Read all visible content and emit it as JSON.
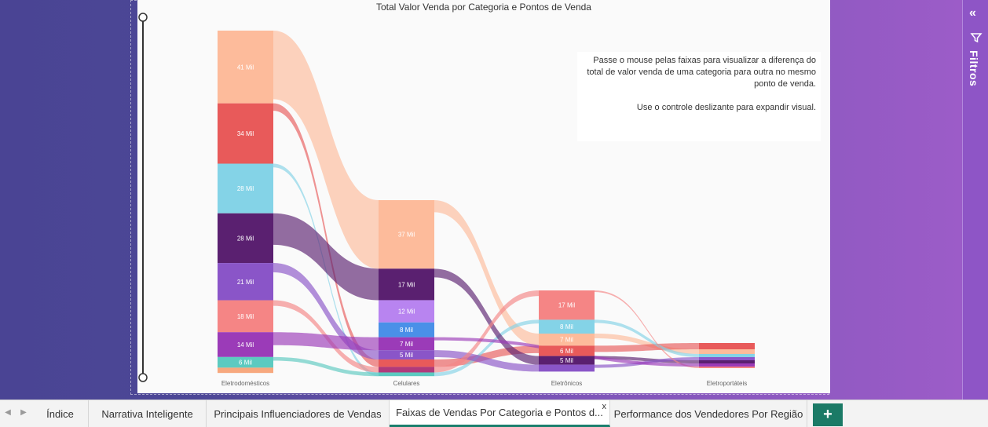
{
  "chart_data": {
    "type": "sankey",
    "title": "Total Valor Venda por Categoria e Pontos de Venda",
    "stages": [
      "Eletrodomésticos",
      "Celulares",
      "Eletrônicos",
      "Eletroportáteis"
    ],
    "nodes": [
      {
        "stage": "Eletrodomésticos",
        "color": "#fdbb9b",
        "value": 41,
        "label": "41 Mil"
      },
      {
        "stage": "Eletrodomésticos",
        "color": "#e85a5a",
        "value": 34,
        "label": "34 Mil"
      },
      {
        "stage": "Eletrodomésticos",
        "color": "#84d3e7",
        "value": 28,
        "label": "28 Mil"
      },
      {
        "stage": "Eletrodomésticos",
        "color": "#5a2070",
        "value": 28,
        "label": "28 Mil"
      },
      {
        "stage": "Eletrodomésticos",
        "color": "#8a55c8",
        "value": 21,
        "label": "21 Mil"
      },
      {
        "stage": "Eletrodomésticos",
        "color": "#f58585",
        "value": 18,
        "label": "18 Mil"
      },
      {
        "stage": "Eletrodomésticos",
        "color": "#9b3bb8",
        "value": 14,
        "label": "14 Mil"
      },
      {
        "stage": "Eletrodomésticos",
        "color": "#5ccac0",
        "value": 6,
        "label": "6 Mil"
      },
      {
        "stage": "Eletrodomésticos",
        "color": "#f7a87e",
        "value": 3,
        "label": ""
      },
      {
        "stage": "Celulares",
        "color": "#fdbb9b",
        "value": 37,
        "label": "37 Mil"
      },
      {
        "stage": "Celulares",
        "color": "#5a2070",
        "value": 17,
        "label": "17 Mil"
      },
      {
        "stage": "Celulares",
        "color": "#b884f0",
        "value": 12,
        "label": "12 Mil"
      },
      {
        "stage": "Celulares",
        "color": "#4a90e8",
        "value": 8,
        "label": "8 Mil"
      },
      {
        "stage": "Celulares",
        "color": "#9b3bb8",
        "value": 7,
        "label": "7 Mil"
      },
      {
        "stage": "Celulares",
        "color": "#8a55c8",
        "value": 5,
        "label": "5 Mil"
      },
      {
        "stage": "Celulares",
        "color": "#e85a5a",
        "value": 4,
        "label": ""
      },
      {
        "stage": "Celulares",
        "color": "#b03a7a",
        "value": 3,
        "label": ""
      },
      {
        "stage": "Celulares",
        "color": "#5ccac0",
        "value": 2,
        "label": ""
      },
      {
        "stage": "Eletrônicos",
        "color": "#f58585",
        "value": 17,
        "label": "17 Mil"
      },
      {
        "stage": "Eletrônicos",
        "color": "#84d3e7",
        "value": 8,
        "label": "8 Mil"
      },
      {
        "stage": "Eletrônicos",
        "color": "#fdbb9b",
        "value": 7,
        "label": "7 Mil"
      },
      {
        "stage": "Eletrônicos",
        "color": "#e85a5a",
        "value": 6,
        "label": "6 Mil"
      },
      {
        "stage": "Eletrônicos",
        "color": "#5a2070",
        "value": 5,
        "label": "5 Mil"
      },
      {
        "stage": "Eletrônicos",
        "color": "#8a55c8",
        "value": 4,
        "label": ""
      },
      {
        "stage": "Eletroportáteis",
        "color": "#e85a5a",
        "value": 4,
        "label": ""
      },
      {
        "stage": "Eletroportáteis",
        "color": "#fdbb9b",
        "value": 3,
        "label": ""
      },
      {
        "stage": "Eletroportáteis",
        "color": "#84d3e7",
        "value": 2,
        "label": ""
      },
      {
        "stage": "Eletroportáteis",
        "color": "#8a55c8",
        "value": 2,
        "label": ""
      },
      {
        "stage": "Eletroportáteis",
        "color": "#5a2070",
        "value": 2,
        "label": ""
      },
      {
        "stage": "Eletroportáteis",
        "color": "#9b3bb8",
        "value": 2,
        "label": ""
      },
      {
        "stage": "Eletroportáteis",
        "color": "#f58585",
        "value": 1,
        "label": ""
      }
    ],
    "flows": [
      {
        "color": "#fdbb9b",
        "from": 0,
        "to": 9
      },
      {
        "color": "#fdbb9b",
        "from": 9,
        "to": 20
      },
      {
        "color": "#fdbb9b",
        "from": 20,
        "to": 25
      },
      {
        "color": "#e85a5a",
        "from": 1,
        "to": 15
      },
      {
        "color": "#e85a5a",
        "from": 15,
        "to": 21
      },
      {
        "color": "#e85a5a",
        "from": 21,
        "to": 24
      },
      {
        "color": "#84d3e7",
        "from": 2,
        "to": 17
      },
      {
        "color": "#84d3e7",
        "from": 17,
        "to": 19
      },
      {
        "color": "#84d3e7",
        "from": 19,
        "to": 26
      },
      {
        "color": "#5a2070",
        "from": 3,
        "to": 10
      },
      {
        "color": "#5a2070",
        "from": 10,
        "to": 22
      },
      {
        "color": "#5a2070",
        "from": 22,
        "to": 28
      },
      {
        "color": "#8a55c8",
        "from": 4,
        "to": 14
      },
      {
        "color": "#8a55c8",
        "from": 14,
        "to": 23
      },
      {
        "color": "#8a55c8",
        "from": 23,
        "to": 27
      },
      {
        "color": "#f58585",
        "from": 5,
        "to": 16
      },
      {
        "color": "#f58585",
        "from": 16,
        "to": 18
      },
      {
        "color": "#f58585",
        "from": 18,
        "to": 30
      },
      {
        "color": "#9b3bb8",
        "from": 6,
        "to": 13
      },
      {
        "color": "#9b3bb8",
        "from": 13,
        "to": 29
      },
      {
        "color": "#5ccac0",
        "from": 7,
        "to": 17
      }
    ]
  },
  "note": {
    "line1": "Passe o mouse pelas faixas para visualizar a diferença do total de valor venda de uma categoria para outra no mesmo ponto de venda.",
    "line2": "Use o controle deslizante para expandir visual."
  },
  "filters": {
    "label": "Filtros",
    "expand_icon": "double-chevron-left-icon",
    "filter_icon": "funnel-icon"
  },
  "tabs": [
    {
      "label": "Índice",
      "active": false
    },
    {
      "label": "Narrativa Inteligente",
      "active": false
    },
    {
      "label": "Principais Influenciadores de Vendas",
      "active": false
    },
    {
      "label": "Faixas de Vendas Por Categoria e Pontos d...",
      "active": true,
      "close": "x"
    },
    {
      "label": "Performance dos Vendedores Por Região",
      "active": false
    }
  ],
  "add_tab": {
    "label": "+"
  },
  "colors": {
    "accent": "#1a7f6d",
    "canvas_left": "#4a4494",
    "canvas_right": "#9c5cc8"
  }
}
